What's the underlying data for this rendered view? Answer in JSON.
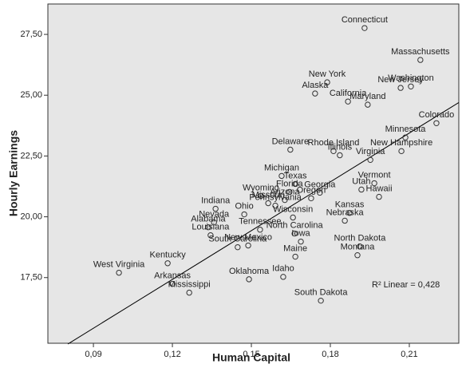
{
  "chart_data": {
    "type": "scatter",
    "x_label": "Human Capital",
    "y_label": "Hourly Earnings",
    "annotation": "R² Linear = 0,428",
    "point_labels": [
      "Connecticut",
      "Massachusetts",
      "New York",
      "Alaska",
      "Washington",
      "New Jersey",
      "California",
      "Maryland",
      "Colorado",
      "Minnesota",
      "Delaware",
      "Rhode Island",
      "Illinois",
      "New Hampshire",
      "Virginia",
      "Vermont",
      "Michigan",
      "Texas",
      "Georgia",
      "Utah",
      "Florida",
      "Wyoming",
      "Oregon",
      "Hawaii",
      "Kansas",
      "Indiana",
      "Missouri",
      "Arizona",
      "Pennsylvania",
      "Ohio",
      "Wisconsin",
      "Nebraska",
      "Nevada",
      "Tennessee",
      "Alabama",
      "North Carolina",
      "Louisiana",
      "New Mexico",
      "Iowa",
      "Maine",
      "North Dakota",
      "Montana",
      "South Carolina",
      "Kentucky",
      "West Virginia",
      "Oklahoma",
      "Idaho",
      "Arkansas",
      "Mississippi",
      "South Dakota"
    ],
    "x": [
      0.193,
      0.2142,
      0.1788,
      0.1742,
      0.2106,
      0.2067,
      0.1867,
      0.1942,
      0.2203,
      0.2085,
      0.1648,
      0.1812,
      0.1836,
      0.207,
      0.1952,
      0.1967,
      0.1615,
      0.1667,
      0.176,
      0.1918,
      0.1645,
      0.1536,
      0.1727,
      0.1985,
      0.1873,
      0.1364,
      0.1564,
      0.1627,
      0.1591,
      0.1473,
      0.1658,
      0.1855,
      0.1358,
      0.1533,
      0.1336,
      0.1664,
      0.1345,
      0.1488,
      0.1688,
      0.1667,
      0.1912,
      0.1903,
      0.1448,
      0.1182,
      0.0997,
      0.1491,
      0.1621,
      0.12,
      0.1264,
      0.1764
    ],
    "y": [
      27.76,
      26.45,
      25.53,
      25.07,
      25.36,
      25.3,
      24.74,
      24.61,
      23.85,
      23.26,
      22.76,
      22.7,
      22.53,
      22.7,
      22.34,
      21.38,
      21.68,
      21.35,
      20.99,
      21.12,
      21.02,
      20.86,
      20.76,
      20.82,
      20.16,
      20.33,
      20.56,
      20.69,
      20.46,
      20.1,
      19.97,
      19.84,
      19.77,
      19.47,
      19.57,
      19.31,
      19.24,
      18.82,
      18.98,
      18.36,
      18.78,
      18.42,
      18.75,
      18.09,
      17.7,
      17.43,
      17.53,
      17.24,
      16.88,
      16.55
    ],
    "fit_line": {
      "x": [
        0.0803,
        0.2288
      ],
      "y": [
        14.77,
        24.7
      ]
    },
    "xlim": [
      0.0727,
      0.2288
    ],
    "ylim": [
      14.8,
      28.75
    ],
    "xticks": [
      {
        "value": 0.09,
        "label": "0,09"
      },
      {
        "value": 0.12,
        "label": "0,12"
      },
      {
        "value": 0.15,
        "label": "0,15"
      },
      {
        "value": 0.18,
        "label": "0,18"
      },
      {
        "value": 0.21,
        "label": "0,21"
      }
    ],
    "yticks": [
      {
        "value": 17.5,
        "label": "17,50"
      },
      {
        "value": 20,
        "label": "20,00"
      },
      {
        "value": 22.5,
        "label": "22,50"
      },
      {
        "value": 25,
        "label": "25,00"
      },
      {
        "value": 27.5,
        "label": "27,50"
      }
    ],
    "background": "#e6e6e6",
    "color": "#333333"
  }
}
